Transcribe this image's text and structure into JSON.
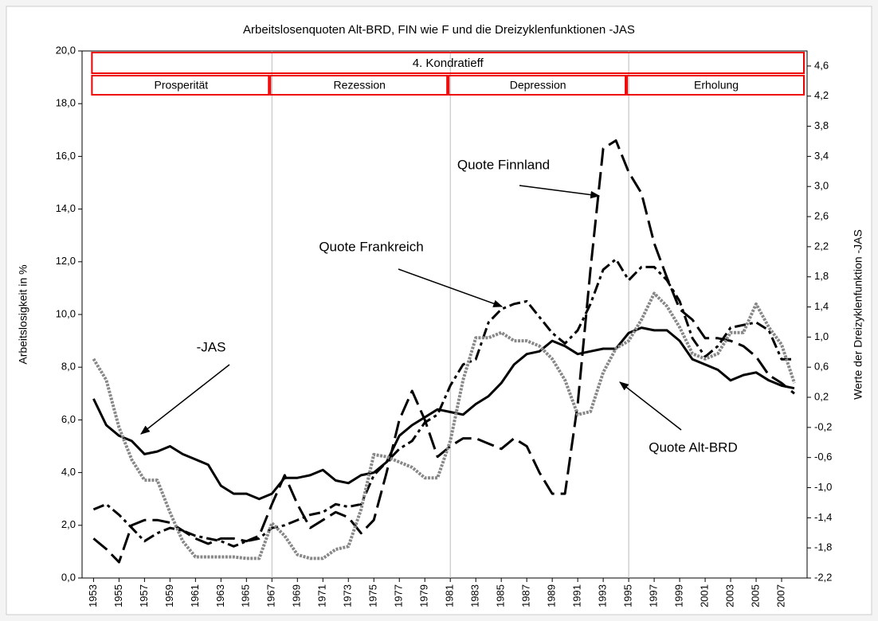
{
  "chart_data": {
    "type": "line",
    "title": "Arbeitslosenquoten Alt-BRD, FIN wie F und die Dreizyklenfunktionen -JAS",
    "ylabel": "Arbeitslosigkeit in %",
    "y2label": "Werte der Dreizyklenfunktion -JAS",
    "x": [
      1953,
      1954,
      1955,
      1956,
      1957,
      1958,
      1959,
      1960,
      1961,
      1962,
      1963,
      1964,
      1965,
      1966,
      1967,
      1968,
      1969,
      1970,
      1971,
      1972,
      1973,
      1974,
      1975,
      1976,
      1977,
      1978,
      1979,
      1980,
      1981,
      1982,
      1983,
      1984,
      1985,
      1986,
      1987,
      1988,
      1989,
      1990,
      1991,
      1992,
      1993,
      1994,
      1995,
      1996,
      1997,
      1998,
      1999,
      2000,
      2001,
      2002,
      2003,
      2004,
      2005,
      2006,
      2007,
      2008
    ],
    "xlim": [
      1952.1,
      2009
    ],
    "xticks": [
      1953,
      1955,
      1957,
      1959,
      1961,
      1963,
      1965,
      1967,
      1969,
      1971,
      1973,
      1975,
      1977,
      1979,
      1981,
      1983,
      1985,
      1987,
      1989,
      1991,
      1993,
      1995,
      1997,
      1999,
      2001,
      2003,
      2005,
      2007
    ],
    "ylim": [
      0,
      20
    ],
    "yticks": [
      {
        "value": 0,
        "label": "0,0"
      },
      {
        "value": 2,
        "label": "2,0"
      },
      {
        "value": 4,
        "label": "4,0"
      },
      {
        "value": 6,
        "label": "6,0"
      },
      {
        "value": 8,
        "label": "8,0"
      },
      {
        "value": 10,
        "label": "10,0"
      },
      {
        "value": 12,
        "label": "12,0"
      },
      {
        "value": 14,
        "label": "14,0"
      },
      {
        "value": 16,
        "label": "16,0"
      },
      {
        "value": 18,
        "label": "18,0"
      },
      {
        "value": 20,
        "label": "20,0"
      }
    ],
    "y2lim": [
      -2.2,
      4.8
    ],
    "y2ticks": [
      {
        "value": -2.2,
        "label": "-2,2"
      },
      {
        "value": -1.8,
        "label": "-1,8"
      },
      {
        "value": -1.4,
        "label": "-1,4"
      },
      {
        "value": -1.0,
        "label": "-1,0"
      },
      {
        "value": -0.6,
        "label": "-0,6"
      },
      {
        "value": -0.2,
        "label": "-0,2"
      },
      {
        "value": 0.2,
        "label": "0,2"
      },
      {
        "value": 0.6,
        "label": "0,6"
      },
      {
        "value": 1.0,
        "label": "1,0"
      },
      {
        "value": 1.4,
        "label": "1,4"
      },
      {
        "value": 1.8,
        "label": "1,8"
      },
      {
        "value": 2.2,
        "label": "2,2"
      },
      {
        "value": 2.6,
        "label": "2,6"
      },
      {
        "value": 3.0,
        "label": "3,0"
      },
      {
        "value": 3.4,
        "label": "3,4"
      },
      {
        "value": 3.8,
        "label": "3,8"
      },
      {
        "value": 4.2,
        "label": "4,2"
      },
      {
        "value": 4.6,
        "label": "4,6"
      }
    ],
    "kondratieff": {
      "label": "4. Kondratieff",
      "from": 1953,
      "to": 2009
    },
    "phases": [
      {
        "label": "Prosperität",
        "from": 1953,
        "to": 1967
      },
      {
        "label": "Rezession",
        "from": 1967,
        "to": 1981
      },
      {
        "label": "Depression",
        "from": 1981,
        "to": 1995
      },
      {
        "label": "Erholung",
        "from": 1995,
        "to": 2009
      }
    ],
    "series": [
      {
        "name": "Quote Alt-BRD",
        "color": "#000000",
        "line_style": "solid",
        "values": [
          6.8,
          5.8,
          5.4,
          5.2,
          4.7,
          4.8,
          5.0,
          4.7,
          4.5,
          4.3,
          3.5,
          3.2,
          3.2,
          3.0,
          3.2,
          3.8,
          3.8,
          3.9,
          4.1,
          3.7,
          3.6,
          3.9,
          4.0,
          4.4,
          5.4,
          5.8,
          6.1,
          6.4,
          6.3,
          6.2,
          6.6,
          6.9,
          7.4,
          8.1,
          8.5,
          8.6,
          9.0,
          8.8,
          8.5,
          8.6,
          8.7,
          8.7,
          9.3,
          9.5,
          9.4,
          9.4,
          9.0,
          8.3,
          8.1,
          7.9,
          7.5,
          7.7,
          7.8,
          7.5,
          7.3,
          7.2
        ]
      },
      {
        "name": "Quote Finnland",
        "color": "#000000",
        "line_style": "long-dash",
        "values": [
          1.5,
          1.1,
          0.6,
          2.0,
          2.2,
          2.2,
          2.1,
          1.8,
          1.5,
          1.3,
          1.5,
          1.5,
          1.4,
          1.6,
          2.8,
          3.9,
          2.8,
          1.9,
          2.2,
          2.5,
          2.3,
          1.7,
          2.2,
          4.0,
          6.0,
          7.1,
          6.0,
          4.6,
          5.0,
          5.3,
          5.3,
          5.1,
          4.9,
          5.3,
          5.0,
          4.0,
          3.2,
          3.2,
          6.6,
          11.7,
          16.3,
          16.6,
          15.4,
          14.6,
          12.7,
          11.4,
          10.2,
          9.8,
          9.1,
          9.1,
          9.0,
          8.8,
          8.4,
          7.7,
          7.4,
          7.0
        ]
      },
      {
        "name": "Quote Frankreich",
        "color": "#000000",
        "line_style": "dash-dot",
        "values": [
          2.6,
          2.8,
          2.4,
          1.9,
          1.4,
          1.7,
          1.9,
          1.8,
          1.6,
          1.5,
          1.4,
          1.2,
          1.4,
          1.5,
          1.9,
          2.0,
          2.2,
          2.4,
          2.5,
          2.8,
          2.7,
          2.8,
          3.9,
          4.4,
          4.9,
          5.2,
          5.9,
          6.2,
          7.3,
          8.1,
          8.3,
          9.7,
          10.2,
          10.4,
          10.5,
          9.9,
          9.3,
          8.9,
          9.4,
          10.4,
          11.7,
          12.1,
          11.3,
          11.8,
          11.8,
          11.3,
          10.5,
          9.1,
          8.4,
          8.8,
          9.5,
          9.6,
          9.7,
          9.4,
          8.3,
          8.3
        ]
      },
      {
        "name": "-JAS",
        "color": "#888888",
        "line_style": "dotted",
        "axis": "y2",
        "values": [
          0.71,
          0.43,
          -0.2,
          -0.63,
          -0.9,
          -0.9,
          -1.33,
          -1.71,
          -1.92,
          -1.92,
          -1.92,
          -1.92,
          -1.94,
          -1.94,
          -1.47,
          -1.64,
          -1.89,
          -1.94,
          -1.94,
          -1.82,
          -1.78,
          -1.29,
          -0.56,
          -0.59,
          -0.66,
          -0.73,
          -0.87,
          -0.87,
          -0.38,
          0.43,
          0.99,
          0.99,
          1.06,
          0.95,
          0.95,
          0.88,
          0.71,
          0.43,
          -0.03,
          0.01,
          0.53,
          0.85,
          0.95,
          1.23,
          1.58,
          1.41,
          1.13,
          0.78,
          0.71,
          0.78,
          1.06,
          1.06,
          1.44,
          1.13,
          0.9,
          0.39
        ]
      }
    ],
    "annotations": [
      "Quote Finnland",
      "Quote Frankreich",
      "-JAS",
      "Quote Alt-BRD"
    ],
    "grid": true
  }
}
